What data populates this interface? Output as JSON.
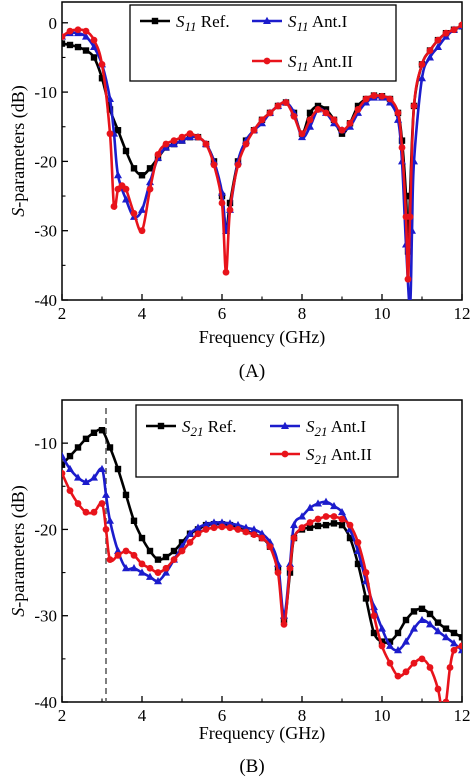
{
  "chart_data": [
    {
      "type": "line",
      "panel_label": "(A)",
      "xlabel": "Frequency (GHz)",
      "ylabel_italic": "S",
      "ylabel_rest": "-parameters (dB)",
      "xlim": [
        2,
        12
      ],
      "ylim": [
        -40,
        3
      ],
      "xticks": [
        "2",
        "4",
        "6",
        "8",
        "10",
        "12"
      ],
      "yticks": [
        "0",
        "-10",
        "-20",
        "-30",
        "-40"
      ],
      "grid": false,
      "legend_position": "top-right",
      "series": [
        {
          "name_sym": "S",
          "name_sub": "11",
          "name_rest": " Ref.",
          "color": "#000000",
          "marker": "square",
          "x": [
            2.0,
            2.2,
            2.4,
            2.6,
            2.8,
            3.0,
            3.2,
            3.4,
            3.6,
            3.8,
            4.0,
            4.2,
            4.4,
            4.6,
            4.8,
            5.0,
            5.2,
            5.4,
            5.6,
            5.8,
            6.0,
            6.1,
            6.2,
            6.4,
            6.6,
            6.8,
            7.0,
            7.2,
            7.4,
            7.6,
            7.8,
            8.0,
            8.2,
            8.4,
            8.6,
            8.8,
            9.0,
            9.2,
            9.4,
            9.6,
            9.8,
            10.0,
            10.2,
            10.4,
            10.5,
            10.6,
            10.65,
            10.7,
            10.8,
            11.0,
            11.2,
            11.4,
            11.6,
            11.8,
            12.0
          ],
          "y": [
            -3.0,
            -3.2,
            -3.5,
            -4.0,
            -5.0,
            -8.0,
            -12.5,
            -15.5,
            -18.5,
            -21.0,
            -22.0,
            -21.0,
            -19.5,
            -18.0,
            -17.5,
            -17.0,
            -16.5,
            -16.5,
            -17.5,
            -20.0,
            -25.0,
            -30.0,
            -26.0,
            -20.0,
            -17.0,
            -15.5,
            -14.0,
            -13.0,
            -12.0,
            -11.5,
            -13.0,
            -16.0,
            -13.0,
            -12.0,
            -12.5,
            -14.0,
            -16.0,
            -14.5,
            -12.0,
            -11.0,
            -10.5,
            -10.6,
            -11.0,
            -13.0,
            -17.0,
            -25.0,
            -33.0,
            -25.0,
            -12.0,
            -6.0,
            -4.0,
            -2.5,
            -1.5,
            -1.0,
            -0.5
          ]
        },
        {
          "name_sym": "S",
          "name_sub": "11",
          "name_rest": " Ant.I",
          "color": "#1c1ccc",
          "marker": "triangle",
          "x": [
            2.0,
            2.2,
            2.4,
            2.6,
            2.8,
            3.0,
            3.2,
            3.3,
            3.4,
            3.6,
            3.8,
            4.0,
            4.2,
            4.4,
            4.6,
            4.8,
            5.0,
            5.2,
            5.4,
            5.6,
            5.8,
            6.0,
            6.1,
            6.2,
            6.4,
            6.6,
            6.8,
            7.0,
            7.2,
            7.4,
            7.6,
            7.8,
            8.0,
            8.2,
            8.4,
            8.6,
            8.8,
            9.0,
            9.2,
            9.4,
            9.6,
            9.8,
            10.0,
            10.2,
            10.4,
            10.5,
            10.6,
            10.7,
            10.75,
            10.8,
            11.0,
            11.2,
            11.4,
            11.6,
            11.8,
            12.0
          ],
          "y": [
            -2.0,
            -1.5,
            -1.5,
            -2.0,
            -3.5,
            -6.0,
            -11.0,
            -16.0,
            -22.0,
            -25.5,
            -28.0,
            -27.0,
            -23.0,
            -19.5,
            -18.0,
            -17.5,
            -17.0,
            -16.5,
            -16.5,
            -17.5,
            -20.0,
            -24.5,
            -30.0,
            -27.0,
            -20.0,
            -17.0,
            -15.5,
            -14.5,
            -13.0,
            -12.0,
            -11.5,
            -13.0,
            -16.5,
            -15.0,
            -12.5,
            -13.0,
            -14.5,
            -15.5,
            -15.0,
            -13.0,
            -11.5,
            -10.8,
            -10.8,
            -11.5,
            -14.0,
            -20.0,
            -32.0,
            -41.0,
            -30.0,
            -20.0,
            -8.0,
            -5.0,
            -3.5,
            -2.0,
            -1.0,
            -0.5
          ]
        },
        {
          "name_sym": "S",
          "name_sub": "11",
          "name_rest": " Ant.II",
          "color": "#e8131b",
          "marker": "circle",
          "x": [
            2.0,
            2.2,
            2.4,
            2.6,
            2.8,
            3.0,
            3.2,
            3.3,
            3.4,
            3.5,
            3.6,
            3.8,
            4.0,
            4.2,
            4.4,
            4.6,
            4.8,
            5.0,
            5.2,
            5.4,
            5.6,
            5.8,
            6.0,
            6.1,
            6.2,
            6.4,
            6.6,
            6.8,
            7.0,
            7.2,
            7.4,
            7.6,
            7.8,
            8.0,
            8.2,
            8.4,
            8.6,
            8.8,
            9.0,
            9.2,
            9.4,
            9.6,
            9.8,
            10.0,
            10.2,
            10.4,
            10.5,
            10.6,
            10.65,
            10.7,
            10.8,
            11.0,
            11.2,
            11.4,
            11.6,
            11.8,
            12.0
          ],
          "y": [
            -2.0,
            -1.2,
            -1.0,
            -1.2,
            -2.5,
            -6.0,
            -16.0,
            -26.5,
            -24.0,
            -23.5,
            -24.0,
            -27.5,
            -30.0,
            -24.0,
            -19.0,
            -17.5,
            -17.0,
            -16.5,
            -16.0,
            -16.5,
            -17.5,
            -20.5,
            -26.0,
            -36.0,
            -27.0,
            -20.5,
            -17.5,
            -15.5,
            -14.0,
            -13.0,
            -12.0,
            -11.5,
            -13.5,
            -16.0,
            -14.0,
            -12.5,
            -13.0,
            -14.0,
            -15.5,
            -14.5,
            -12.5,
            -11.0,
            -10.5,
            -10.6,
            -11.0,
            -13.0,
            -18.0,
            -28.0,
            -37.0,
            -28.0,
            -12.0,
            -6.0,
            -4.0,
            -2.5,
            -1.5,
            -1.0,
            -0.3
          ]
        }
      ]
    },
    {
      "type": "line",
      "panel_label": "(B)",
      "xlabel": "Frequency (GHz)",
      "ylabel_italic": "S",
      "ylabel_rest": "-parameters (dB)",
      "xlim": [
        2,
        12
      ],
      "ylim": [
        -40,
        -5
      ],
      "xticks": [
        "2",
        "4",
        "6",
        "8",
        "10",
        "12"
      ],
      "yticks": [
        "-10",
        "-20",
        "-30",
        "-40"
      ],
      "grid": false,
      "legend_position": "top-right",
      "reference_line_x": 3.1,
      "series": [
        {
          "name_sym": "S",
          "name_sub": "21",
          "name_rest": " Ref.",
          "color": "#000000",
          "marker": "square",
          "x": [
            2.0,
            2.2,
            2.4,
            2.6,
            2.8,
            3.0,
            3.2,
            3.4,
            3.6,
            3.8,
            4.0,
            4.2,
            4.4,
            4.6,
            4.8,
            5.0,
            5.2,
            5.4,
            5.6,
            5.8,
            6.0,
            6.2,
            6.4,
            6.6,
            6.8,
            7.0,
            7.2,
            7.4,
            7.55,
            7.7,
            7.8,
            8.0,
            8.2,
            8.4,
            8.6,
            8.8,
            9.0,
            9.2,
            9.4,
            9.6,
            9.8,
            10.0,
            10.2,
            10.4,
            10.6,
            10.8,
            11.0,
            11.2,
            11.4,
            11.6,
            11.8,
            12.0
          ],
          "y": [
            -12.5,
            -11.5,
            -10.5,
            -9.5,
            -8.8,
            -8.5,
            -10.5,
            -13.0,
            -16.0,
            -19.0,
            -21.0,
            -22.5,
            -23.5,
            -23.2,
            -22.5,
            -21.5,
            -20.5,
            -20.0,
            -19.5,
            -19.4,
            -19.4,
            -19.5,
            -19.8,
            -20.2,
            -20.5,
            -21.0,
            -22.0,
            -24.5,
            -30.5,
            -25.0,
            -21.0,
            -20.0,
            -19.8,
            -19.6,
            -19.5,
            -19.3,
            -19.5,
            -21.0,
            -24.0,
            -28.0,
            -32.0,
            -33.0,
            -33.0,
            -32.0,
            -30.5,
            -29.5,
            -29.2,
            -29.8,
            -30.8,
            -31.5,
            -32.0,
            -32.5
          ]
        },
        {
          "name_sym": "S",
          "name_sub": "21",
          "name_rest": " Ant.I",
          "color": "#1c1ccc",
          "marker": "triangle",
          "x": [
            2.0,
            2.2,
            2.4,
            2.6,
            2.8,
            3.0,
            3.1,
            3.2,
            3.4,
            3.6,
            3.8,
            4.0,
            4.2,
            4.4,
            4.6,
            4.8,
            5.0,
            5.2,
            5.4,
            5.6,
            5.8,
            6.0,
            6.2,
            6.4,
            6.6,
            6.8,
            7.0,
            7.2,
            7.4,
            7.55,
            7.7,
            7.8,
            8.0,
            8.2,
            8.4,
            8.6,
            8.8,
            9.0,
            9.2,
            9.4,
            9.6,
            9.8,
            10.0,
            10.2,
            10.4,
            10.6,
            10.8,
            11.0,
            11.2,
            11.4,
            11.6,
            11.8,
            12.0
          ],
          "y": [
            -11.5,
            -13.0,
            -14.0,
            -14.5,
            -14.0,
            -13.0,
            -16.0,
            -19.0,
            -22.5,
            -24.5,
            -24.5,
            -25.0,
            -25.5,
            -26.0,
            -25.0,
            -23.5,
            -22.0,
            -20.5,
            -19.8,
            -19.4,
            -19.2,
            -19.2,
            -19.3,
            -19.5,
            -19.8,
            -20.0,
            -20.5,
            -21.5,
            -24.0,
            -30.0,
            -24.0,
            -19.5,
            -18.5,
            -17.5,
            -17.0,
            -16.8,
            -17.3,
            -18.0,
            -20.0,
            -22.5,
            -26.0,
            -29.0,
            -31.5,
            -33.5,
            -34.0,
            -33.0,
            -31.5,
            -30.5,
            -31.0,
            -31.8,
            -32.5,
            -33.2,
            -34.0
          ]
        },
        {
          "name_sym": "S",
          "name_sub": "21",
          "name_rest": " Ant.II",
          "color": "#e8131b",
          "marker": "circle",
          "x": [
            2.0,
            2.2,
            2.4,
            2.6,
            2.8,
            3.0,
            3.1,
            3.2,
            3.4,
            3.6,
            3.8,
            4.0,
            4.2,
            4.4,
            4.6,
            4.8,
            5.0,
            5.2,
            5.4,
            5.6,
            5.8,
            6.0,
            6.2,
            6.4,
            6.6,
            6.8,
            7.0,
            7.2,
            7.4,
            7.55,
            7.7,
            7.8,
            8.0,
            8.2,
            8.4,
            8.6,
            8.8,
            9.0,
            9.2,
            9.4,
            9.6,
            9.8,
            10.0,
            10.2,
            10.4,
            10.6,
            10.8,
            11.0,
            11.2,
            11.4,
            11.5,
            11.6,
            11.7,
            11.8,
            12.0
          ],
          "y": [
            -13.5,
            -15.5,
            -17.0,
            -18.0,
            -18.0,
            -17.0,
            -20.0,
            -23.5,
            -23.0,
            -22.5,
            -23.0,
            -24.0,
            -24.5,
            -25.0,
            -24.5,
            -23.5,
            -22.5,
            -21.5,
            -20.5,
            -20.0,
            -19.8,
            -19.7,
            -19.8,
            -20.0,
            -20.3,
            -20.6,
            -21.0,
            -22.0,
            -25.0,
            -31.0,
            -24.5,
            -21.0,
            -19.8,
            -19.2,
            -18.8,
            -18.5,
            -18.5,
            -18.8,
            -19.5,
            -21.5,
            -25.0,
            -30.0,
            -33.5,
            -35.5,
            -37.0,
            -36.5,
            -35.5,
            -35.0,
            -36.0,
            -38.5,
            -41.0,
            -40.0,
            -36.0,
            -34.0,
            -33.5
          ]
        }
      ]
    }
  ]
}
